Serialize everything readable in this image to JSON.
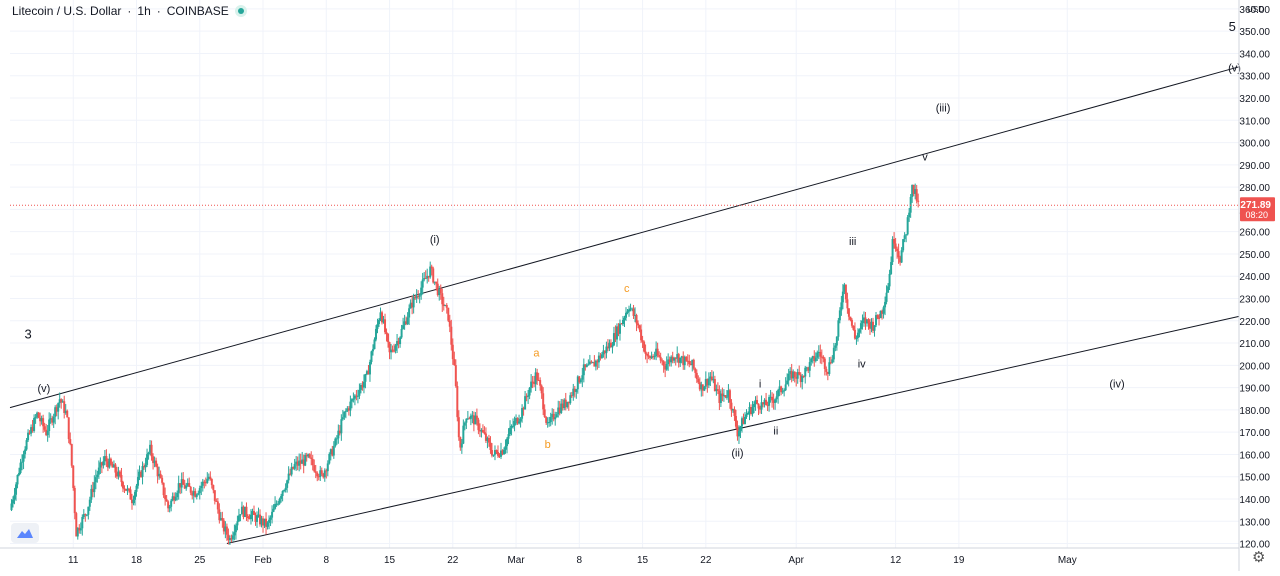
{
  "header": {
    "symbol": "Litecoin / U.S. Dollar",
    "interval": "1h",
    "exchange": "COINBASE",
    "sep1": "·",
    "sep2": "·"
  },
  "price_scale": {
    "currency": "USD",
    "top_label": "360.00",
    "last_price": "271.89",
    "countdown": "08:20",
    "last_price_color": "#ef5350"
  },
  "colors": {
    "up": "#26a69a",
    "down": "#ef5350",
    "channel": "#131722",
    "orange_labels": "#f59b22",
    "grid": "#f0f3fa"
  },
  "chart_data": {
    "type": "candlestick",
    "title": "Litecoin / U.S. Dollar · 1h · COINBASE",
    "y_axis": {
      "ticks": [
        120,
        130,
        140,
        150,
        160,
        170,
        180,
        190,
        200,
        210,
        220,
        230,
        240,
        250,
        260,
        270,
        280,
        290,
        300,
        310,
        320,
        330,
        340,
        350,
        360
      ],
      "ylim": [
        118,
        364
      ],
      "unit": "USD",
      "position": "right"
    },
    "x_axis": {
      "start_date": "2021-01-04",
      "end_date": "2021-05-20",
      "ticks": [
        {
          "date": "2021-01-11",
          "label": "11"
        },
        {
          "date": "2021-01-18",
          "label": "18"
        },
        {
          "date": "2021-01-25",
          "label": "25"
        },
        {
          "date": "2021-02-01",
          "label": "Feb"
        },
        {
          "date": "2021-02-08",
          "label": "8"
        },
        {
          "date": "2021-02-15",
          "label": "15"
        },
        {
          "date": "2021-02-22",
          "label": "22"
        },
        {
          "date": "2021-03-01",
          "label": "Mar"
        },
        {
          "date": "2021-03-08",
          "label": "8"
        },
        {
          "date": "2021-03-15",
          "label": "15"
        },
        {
          "date": "2021-03-22",
          "label": "22"
        },
        {
          "date": "2021-04-01",
          "label": "Apr"
        },
        {
          "date": "2021-04-12",
          "label": "12"
        },
        {
          "date": "2021-04-19",
          "label": "19"
        },
        {
          "date": "2021-05-01",
          "label": "May"
        }
      ]
    },
    "price_path": [
      [
        "2021-01-04T00:00",
        135
      ],
      [
        "2021-01-05T12:00",
        162
      ],
      [
        "2021-01-07T00:00",
        178
      ],
      [
        "2021-01-08T00:00",
        170
      ],
      [
        "2021-01-09T12:00",
        185
      ],
      [
        "2021-01-10T06:00",
        178
      ],
      [
        "2021-01-10T18:00",
        160
      ],
      [
        "2021-01-11T08:00",
        125
      ],
      [
        "2021-01-12T12:00",
        135
      ],
      [
        "2021-01-13T12:00",
        150
      ],
      [
        "2021-01-14T12:00",
        158
      ],
      [
        "2021-01-15T18:00",
        152
      ],
      [
        "2021-01-17T12:00",
        140
      ],
      [
        "2021-01-18T12:00",
        152
      ],
      [
        "2021-01-19T12:00",
        162
      ],
      [
        "2021-01-20T12:00",
        150
      ],
      [
        "2021-01-21T12:00",
        136
      ],
      [
        "2021-01-22T18:00",
        147
      ],
      [
        "2021-01-24T12:00",
        143
      ],
      [
        "2021-01-26T00:00",
        150
      ],
      [
        "2021-01-27T12:00",
        128
      ],
      [
        "2021-01-28T08:00",
        122
      ],
      [
        "2021-01-29T12:00",
        135
      ],
      [
        "2021-01-31T00:00",
        132
      ],
      [
        "2021-02-01T12:00",
        128
      ],
      [
        "2021-02-03T00:00",
        143
      ],
      [
        "2021-02-04T12:00",
        155
      ],
      [
        "2021-02-06T00:00",
        158
      ],
      [
        "2021-02-07T12:00",
        150
      ],
      [
        "2021-02-09T00:00",
        165
      ],
      [
        "2021-02-10T00:00",
        178
      ],
      [
        "2021-02-11T00:00",
        185
      ],
      [
        "2021-02-12T12:00",
        195
      ],
      [
        "2021-02-13T12:00",
        215
      ],
      [
        "2021-02-14T00:00",
        225
      ],
      [
        "2021-02-15T00:00",
        205
      ],
      [
        "2021-02-16T00:00",
        212
      ],
      [
        "2021-02-17T12:00",
        228
      ],
      [
        "2021-02-18T12:00",
        235
      ],
      [
        "2021-02-19T12:00",
        243
      ],
      [
        "2021-02-20T12:00",
        232
      ],
      [
        "2021-02-21T12:00",
        222
      ],
      [
        "2021-02-22T06:00",
        195
      ],
      [
        "2021-02-22T18:00",
        162
      ],
      [
        "2021-02-23T12:00",
        178
      ],
      [
        "2021-02-24T12:00",
        175
      ],
      [
        "2021-02-25T12:00",
        168
      ],
      [
        "2021-02-26T12:00",
        160
      ],
      [
        "2021-02-27T12:00",
        162
      ],
      [
        "2021-02-28T12:00",
        172
      ],
      [
        "2021-03-01T12:00",
        178
      ],
      [
        "2021-03-02T12:00",
        190
      ],
      [
        "2021-03-03T06:00",
        196
      ],
      [
        "2021-03-03T18:00",
        188
      ],
      [
        "2021-03-04T12:00",
        172
      ],
      [
        "2021-03-05T12:00",
        180
      ],
      [
        "2021-03-06T12:00",
        183
      ],
      [
        "2021-03-07T12:00",
        190
      ],
      [
        "2021-03-08T12:00",
        198
      ],
      [
        "2021-03-09T12:00",
        200
      ],
      [
        "2021-03-10T12:00",
        205
      ],
      [
        "2021-03-11T12:00",
        210
      ],
      [
        "2021-03-12T12:00",
        218
      ],
      [
        "2021-03-13T12:00",
        227
      ],
      [
        "2021-03-14T12:00",
        218
      ],
      [
        "2021-03-15T12:00",
        203
      ],
      [
        "2021-03-16T12:00",
        205
      ],
      [
        "2021-03-17T12:00",
        200
      ],
      [
        "2021-03-18T12:00",
        205
      ],
      [
        "2021-03-19T12:00",
        202
      ],
      [
        "2021-03-20T12:00",
        200
      ],
      [
        "2021-03-21T12:00",
        190
      ],
      [
        "2021-03-22T12:00",
        195
      ],
      [
        "2021-03-23T12:00",
        185
      ],
      [
        "2021-03-24T12:00",
        188
      ],
      [
        "2021-03-25T12:00",
        170
      ],
      [
        "2021-03-26T12:00",
        178
      ],
      [
        "2021-03-27T12:00",
        183
      ],
      [
        "2021-03-28T12:00",
        182
      ],
      [
        "2021-03-29T12:00",
        185
      ],
      [
        "2021-03-30T12:00",
        190
      ],
      [
        "2021-03-31T12:00",
        196
      ],
      [
        "2021-04-01T12:00",
        195
      ],
      [
        "2021-04-02T12:00",
        200
      ],
      [
        "2021-04-03T12:00",
        206
      ],
      [
        "2021-04-04T12:00",
        198
      ],
      [
        "2021-04-05T12:00",
        212
      ],
      [
        "2021-04-06T06:00",
        238
      ],
      [
        "2021-04-06T18:00",
        225
      ],
      [
        "2021-04-07T12:00",
        212
      ],
      [
        "2021-04-08T12:00",
        220
      ],
      [
        "2021-04-09T12:00",
        218
      ],
      [
        "2021-04-10T12:00",
        225
      ],
      [
        "2021-04-11T06:00",
        238
      ],
      [
        "2021-04-11T18:00",
        258
      ],
      [
        "2021-04-12T12:00",
        248
      ],
      [
        "2021-04-13T06:00",
        262
      ],
      [
        "2021-04-13T18:00",
        280
      ],
      [
        "2021-04-14T06:00",
        276
      ],
      [
        "2021-04-14T12:00",
        271.89
      ]
    ],
    "channel_lines": [
      {
        "from": [
          "2021-01-04T00:00",
          181
        ],
        "to": [
          "2021-05-20T00:00",
          334
        ]
      },
      {
        "from": [
          "2021-01-28T00:00",
          120
        ],
        "to": [
          "2021-05-20T00:00",
          222
        ]
      }
    ],
    "wave_labels": [
      {
        "text": "3",
        "date": "2021-01-06T00:00",
        "price": 212,
        "color": "black"
      },
      {
        "text": "(v)",
        "date": "2021-01-07T18:00",
        "price": 188,
        "color": "black"
      },
      {
        "text": "(i)",
        "date": "2021-02-20T00:00",
        "price": 255,
        "color": "black"
      },
      {
        "text": "a",
        "date": "2021-03-03T06:00",
        "price": 204,
        "color": "orange"
      },
      {
        "text": "b",
        "date": "2021-03-04T12:00",
        "price": 163,
        "color": "orange"
      },
      {
        "text": "c",
        "date": "2021-03-13T06:00",
        "price": 233,
        "color": "orange"
      },
      {
        "text": "(ii)",
        "date": "2021-03-25T12:00",
        "price": 159,
        "color": "black"
      },
      {
        "text": "i",
        "date": "2021-03-28T00:00",
        "price": 190,
        "color": "black"
      },
      {
        "text": "ii",
        "date": "2021-03-29T18:00",
        "price": 169,
        "color": "black"
      },
      {
        "text": "iii",
        "date": "2021-04-07T06:00",
        "price": 254,
        "color": "black"
      },
      {
        "text": "iv",
        "date": "2021-04-08T06:00",
        "price": 199,
        "color": "black"
      },
      {
        "text": "v",
        "date": "2021-04-15T06:00",
        "price": 292,
        "color": "black"
      },
      {
        "text": "(iii)",
        "date": "2021-04-17T06:00",
        "price": 314,
        "color": "black"
      },
      {
        "text": "(iv)",
        "date": "2021-05-06T12:00",
        "price": 190,
        "color": "black"
      },
      {
        "text": "(v)",
        "date": "2021-05-19T12:00",
        "price": 332,
        "color": "black"
      },
      {
        "text": "5",
        "date": "2021-05-19T06:00",
        "price": 350,
        "color": "black"
      }
    ],
    "last_price": 271.89,
    "grid": true
  }
}
